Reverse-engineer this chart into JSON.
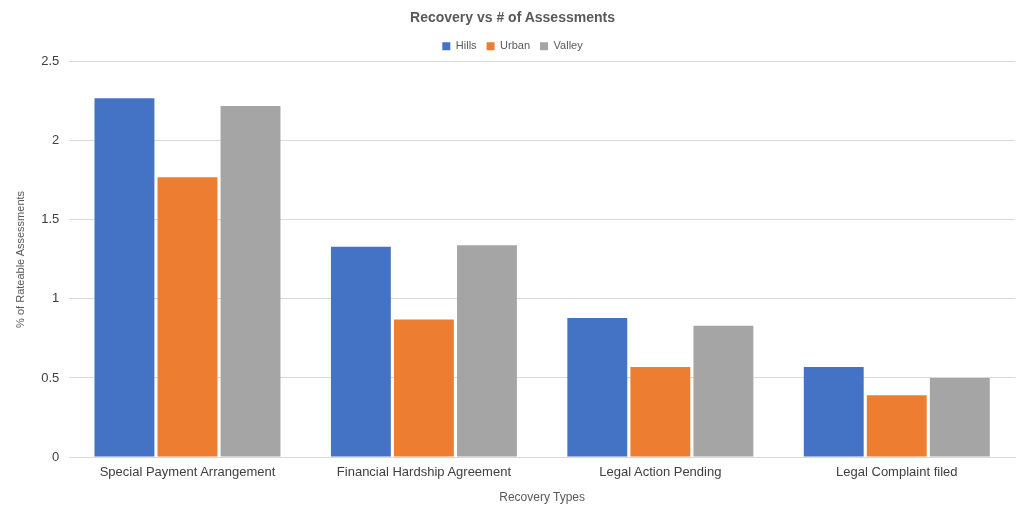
{
  "chart_data": {
    "type": "bar",
    "title": "Recovery vs # of Assessments",
    "xlabel": "Recovery Types",
    "ylabel": "% of Rateable Assessments",
    "categories": [
      "Special Payment Arrangement",
      "Financial Hardship Agreement",
      "Legal Action Pending",
      "Legal Complaint filed"
    ],
    "series": [
      {
        "name": "Hills",
        "color": "#4472c4",
        "values": [
          2.27,
          1.33,
          0.88,
          0.57
        ]
      },
      {
        "name": "Urban",
        "color": "#ed7d31",
        "values": [
          1.77,
          0.87,
          0.57,
          0.39
        ]
      },
      {
        "name": "Valley",
        "color": "#a5a5a5",
        "values": [
          2.22,
          1.34,
          0.83,
          0.5
        ]
      }
    ],
    "ylim": [
      0,
      2.5
    ],
    "yticks": [
      0,
      0.5,
      1,
      1.5,
      2,
      2.5
    ],
    "grid": "y",
    "legend": "top"
  }
}
